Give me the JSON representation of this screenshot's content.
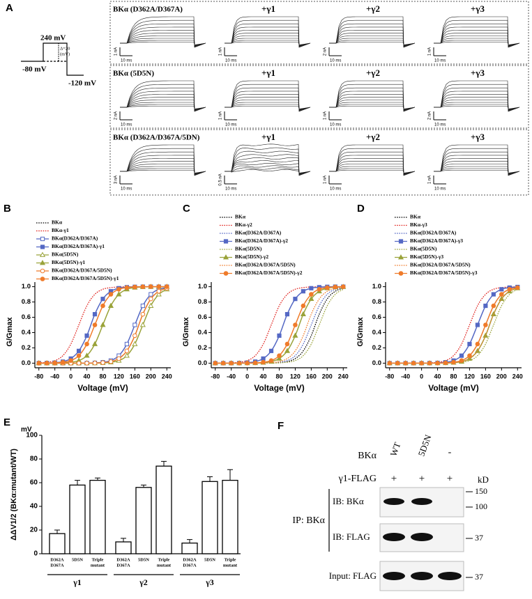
{
  "panel_a": {
    "label": "A",
    "protocol": {
      "top": "240 mV",
      "step": [
        "Δ=20",
        "(mV)"
      ],
      "hold": "-80 mV",
      "tail": "-120 mV"
    },
    "rows": [
      {
        "titles": [
          "BKα (D362A/D367A)",
          "+γ1",
          "+γ2",
          "+γ3"
        ],
        "current_scales": [
          "1 nA",
          "1 nA",
          "2 nA",
          "1 nA"
        ],
        "time_scales": [
          "10 ms",
          "10 ms",
          "10 ms",
          "10 ms"
        ]
      },
      {
        "titles": [
          "BKα (5D5N)",
          "+γ1",
          "+γ2",
          "+γ3"
        ],
        "current_scales": [
          "2 nA",
          "1 nA",
          "1 nA",
          "2 nA"
        ],
        "time_scales": [
          "10 ms",
          "10 ms",
          "10 ms",
          "10 ms"
        ]
      },
      {
        "titles": [
          "BKα (D362A/D367A/5DN)",
          "+γ1",
          "+γ2",
          "+γ3"
        ],
        "current_scales": [
          "3 nA",
          "0.5 nA",
          "1 nA",
          "1 nA"
        ],
        "time_scales": [
          "10 ms",
          "10 ms",
          "10 ms",
          "10 ms"
        ]
      }
    ]
  },
  "chart_data": [
    {
      "type": "line",
      "panel": "B",
      "xlabel": "Voltage (mV)",
      "ylabel": "G/Gmax",
      "x": [
        -80,
        -60,
        -40,
        -20,
        0,
        20,
        40,
        60,
        80,
        100,
        120,
        140,
        160,
        180,
        200,
        220,
        240
      ],
      "xlim": [
        -90,
        250
      ],
      "ylim": [
        -0.06,
        1.06
      ],
      "xticks": [
        -80,
        -40,
        0,
        40,
        80,
        120,
        160,
        200,
        240
      ],
      "yticks": [
        {
          "value": 0,
          "label": "0.0"
        },
        {
          "value": 0.2,
          "label": "0.2"
        },
        {
          "value": 0.4,
          "label": "0.4"
        },
        {
          "value": 0.6,
          "label": "0.6"
        },
        {
          "value": 0.8,
          "label": "0.8"
        },
        {
          "value": 1,
          "label": "1.0"
        }
      ],
      "series": [
        {
          "name": "BKα",
          "color": "#000000",
          "style": "dotted",
          "marker": null,
          "filled": false,
          "values": [
            0,
            0,
            0,
            0,
            0,
            0,
            0,
            0.002,
            0.007,
            0.02,
            0.06,
            0.16,
            0.36,
            0.64,
            0.84,
            0.94,
            0.98
          ]
        },
        {
          "name": "BKα-γ1",
          "color": "#e0201b",
          "style": "dotted",
          "marker": null,
          "filled": false,
          "values": [
            0.004,
            0.012,
            0.034,
            0.098,
            0.25,
            0.5,
            0.75,
            0.9,
            0.966,
            0.988,
            0.996,
            0.999,
            1,
            1,
            1,
            1,
            1
          ]
        },
        {
          "name": "BKα(D362A/D367A)",
          "color": "#5468c4",
          "style": "solid",
          "marker": "square",
          "filled": false,
          "values": [
            0,
            0,
            0,
            0,
            0,
            0,
            0.001,
            0.004,
            0.012,
            0.034,
            0.098,
            0.25,
            0.5,
            0.75,
            0.9,
            0.966,
            0.988
          ]
        },
        {
          "name": "BKα(D362A/D367A)-γ1",
          "color": "#5468c4",
          "style": "solid",
          "marker": "square",
          "filled": true,
          "values": [
            0,
            0.002,
            0.007,
            0.02,
            0.06,
            0.16,
            0.36,
            0.64,
            0.84,
            0.94,
            0.98,
            0.993,
            0.998,
            1,
            1,
            1,
            1
          ]
        },
        {
          "name": "BKα(5D5N)",
          "color": "#9aa33a",
          "style": "solid",
          "marker": "triangle",
          "filled": false,
          "values": [
            0,
            0,
            0,
            0,
            0,
            0,
            0,
            0.001,
            0.004,
            0.012,
            0.034,
            0.098,
            0.25,
            0.5,
            0.75,
            0.9,
            0.966
          ]
        },
        {
          "name": "BKα(5D5N)-γ1",
          "color": "#9aa33a",
          "style": "solid",
          "marker": "triangle",
          "filled": true,
          "values": [
            0,
            0,
            0.001,
            0.004,
            0.012,
            0.034,
            0.098,
            0.25,
            0.5,
            0.75,
            0.9,
            0.966,
            0.988,
            0.996,
            0.999,
            1,
            1
          ]
        },
        {
          "name": "BKα(D362A/D367A/5D5N)",
          "color": "#ef7b2a",
          "style": "solid",
          "marker": "circle",
          "filled": false,
          "values": [
            0,
            0,
            0,
            0,
            0,
            0,
            0,
            0.002,
            0.007,
            0.02,
            0.06,
            0.16,
            0.36,
            0.64,
            0.84,
            0.94,
            0.98
          ]
        },
        {
          "name": "BKα(D362A/D367A/5D5N)-γ1",
          "color": "#ef7b2a",
          "style": "solid",
          "marker": "circle",
          "filled": true,
          "values": [
            0,
            0.001,
            0.004,
            0.012,
            0.034,
            0.098,
            0.25,
            0.5,
            0.75,
            0.9,
            0.966,
            0.988,
            0.996,
            0.999,
            1,
            1,
            1
          ]
        }
      ]
    },
    {
      "type": "line",
      "panel": "C",
      "xlabel": "Voltage (mV)",
      "ylabel": "G/Gmax",
      "x": [
        -80,
        -60,
        -40,
        -20,
        0,
        20,
        40,
        60,
        80,
        100,
        120,
        140,
        160,
        180,
        200,
        220,
        240
      ],
      "xlim": [
        -90,
        250
      ],
      "ylim": [
        -0.06,
        1.06
      ],
      "xticks": [
        -80,
        -40,
        0,
        40,
        80,
        120,
        160,
        200,
        240
      ],
      "yticks": [
        {
          "value": 0,
          "label": "0.0"
        },
        {
          "value": 0.2,
          "label": "0.2"
        },
        {
          "value": 0.4,
          "label": "0.4"
        },
        {
          "value": 0.6,
          "label": "0.6"
        },
        {
          "value": 0.8,
          "label": "0.8"
        },
        {
          "value": 1,
          "label": "1.0"
        }
      ],
      "series": [
        {
          "name": "BKα",
          "color": "#000000",
          "style": "dotted",
          "marker": null,
          "filled": false,
          "values": [
            0,
            0,
            0,
            0,
            0,
            0,
            0,
            0.002,
            0.007,
            0.02,
            0.06,
            0.16,
            0.36,
            0.64,
            0.84,
            0.94,
            0.98
          ]
        },
        {
          "name": "BKα-γ2",
          "color": "#e0201b",
          "style": "dotted",
          "marker": null,
          "filled": false,
          "values": [
            0,
            0.001,
            0.004,
            0.012,
            0.034,
            0.098,
            0.25,
            0.5,
            0.75,
            0.9,
            0.966,
            0.988,
            0.996,
            0.999,
            1,
            1,
            1
          ]
        },
        {
          "name": "BKα(D362A/D367A)",
          "color": "#5468c4",
          "style": "dotted",
          "marker": null,
          "filled": false,
          "values": [
            0,
            0,
            0,
            0,
            0,
            0,
            0.001,
            0.004,
            0.012,
            0.034,
            0.098,
            0.25,
            0.5,
            0.75,
            0.9,
            0.966,
            0.988
          ]
        },
        {
          "name": "BKα(D362A/D367A)-γ2",
          "color": "#5468c4",
          "style": "solid",
          "marker": "square",
          "filled": true,
          "values": [
            0,
            0,
            0,
            0.002,
            0.007,
            0.02,
            0.06,
            0.16,
            0.36,
            0.64,
            0.84,
            0.94,
            0.98,
            0.993,
            0.998,
            1,
            1
          ]
        },
        {
          "name": "BKα(5D5N)",
          "color": "#9aa33a",
          "style": "dotted",
          "marker": null,
          "filled": false,
          "values": [
            0,
            0,
            0,
            0,
            0,
            0,
            0,
            0.001,
            0.004,
            0.012,
            0.034,
            0.098,
            0.25,
            0.5,
            0.75,
            0.9,
            0.966
          ]
        },
        {
          "name": "BKα(5D5N)-γ2",
          "color": "#9aa33a",
          "style": "solid",
          "marker": "triangle",
          "filled": true,
          "values": [
            0,
            0,
            0,
            0,
            0,
            0.002,
            0.007,
            0.02,
            0.06,
            0.16,
            0.36,
            0.64,
            0.84,
            0.94,
            0.98,
            0.993,
            0.998
          ]
        },
        {
          "name": "BKα(D362A/D367A/5D5N)",
          "color": "#ef7b2a",
          "style": "dotted",
          "marker": null,
          "filled": false,
          "values": [
            0,
            0,
            0,
            0,
            0,
            0,
            0.002,
            0.007,
            0.02,
            0.06,
            0.16,
            0.36,
            0.64,
            0.84,
            0.94,
            0.98,
            0.993
          ]
        },
        {
          "name": "BKα(D362A/D367A/5D5N)-γ2",
          "color": "#ef7b2a",
          "style": "solid",
          "marker": "circle",
          "filled": true,
          "values": [
            0,
            0,
            0,
            0,
            0.001,
            0.004,
            0.012,
            0.034,
            0.098,
            0.25,
            0.5,
            0.75,
            0.9,
            0.966,
            0.988,
            0.996,
            0.999
          ]
        }
      ]
    },
    {
      "type": "line",
      "panel": "D",
      "xlabel": "Voltage (mV)",
      "ylabel": "G/Gmax",
      "x": [
        -80,
        -60,
        -40,
        -20,
        0,
        20,
        40,
        60,
        80,
        100,
        120,
        140,
        160,
        180,
        200,
        220,
        240
      ],
      "xlim": [
        -90,
        250
      ],
      "ylim": [
        -0.06,
        1.06
      ],
      "xticks": [
        -80,
        -40,
        0,
        40,
        80,
        120,
        160,
        200,
        240
      ],
      "yticks": [
        {
          "value": 0,
          "label": "0.0"
        },
        {
          "value": 0.2,
          "label": "0.2"
        },
        {
          "value": 0.4,
          "label": "0.4"
        },
        {
          "value": 0.6,
          "label": "0.6"
        },
        {
          "value": 0.8,
          "label": "0.8"
        },
        {
          "value": 1,
          "label": "1.0"
        }
      ],
      "series": [
        {
          "name": "BKα",
          "color": "#000000",
          "style": "dotted",
          "marker": null,
          "filled": false,
          "values": [
            0,
            0,
            0,
            0,
            0,
            0,
            0,
            0.002,
            0.007,
            0.02,
            0.06,
            0.16,
            0.36,
            0.64,
            0.84,
            0.94,
            0.98
          ]
        },
        {
          "name": "BKα-γ3",
          "color": "#e0201b",
          "style": "dotted",
          "marker": null,
          "filled": false,
          "values": [
            0,
            0,
            0,
            0,
            0.001,
            0.004,
            0.012,
            0.034,
            0.098,
            0.25,
            0.5,
            0.75,
            0.9,
            0.966,
            0.988,
            0.996,
            0.999
          ]
        },
        {
          "name": "BKα(D362A/D367A)",
          "color": "#5468c4",
          "style": "dotted",
          "marker": null,
          "filled": false,
          "values": [
            0,
            0,
            0,
            0,
            0,
            0,
            0.001,
            0.004,
            0.012,
            0.034,
            0.098,
            0.25,
            0.5,
            0.75,
            0.9,
            0.966,
            0.988
          ]
        },
        {
          "name": "BKα(D362A/D367A)-γ3",
          "color": "#5468c4",
          "style": "solid",
          "marker": "square",
          "filled": true,
          "values": [
            0,
            0,
            0,
            0,
            0,
            0.001,
            0.004,
            0.012,
            0.034,
            0.098,
            0.25,
            0.5,
            0.75,
            0.9,
            0.966,
            0.988,
            0.996
          ]
        },
        {
          "name": "BKα(5D5N)",
          "color": "#9aa33a",
          "style": "dotted",
          "marker": null,
          "filled": false,
          "values": [
            0,
            0,
            0,
            0,
            0,
            0,
            0,
            0.001,
            0.004,
            0.012,
            0.034,
            0.098,
            0.25,
            0.5,
            0.75,
            0.9,
            0.966
          ]
        },
        {
          "name": "BKα(5D5N)-γ3",
          "color": "#9aa33a",
          "style": "solid",
          "marker": "triangle",
          "filled": true,
          "values": [
            0,
            0,
            0,
            0,
            0,
            0,
            0,
            0.002,
            0.007,
            0.02,
            0.06,
            0.16,
            0.36,
            0.64,
            0.84,
            0.94,
            0.98
          ]
        },
        {
          "name": "BKα(D362A/D367A/5D5N)",
          "color": "#ef7b2a",
          "style": "dotted",
          "marker": null,
          "filled": false,
          "values": [
            0,
            0,
            0,
            0,
            0,
            0,
            0,
            0.002,
            0.007,
            0.02,
            0.06,
            0.16,
            0.36,
            0.64,
            0.84,
            0.94,
            0.98
          ]
        },
        {
          "name": "BKα(D362A/D367A/5D5N)-γ3",
          "color": "#ef7b2a",
          "style": "solid",
          "marker": "circle",
          "filled": true,
          "values": [
            0,
            0,
            0,
            0,
            0,
            0,
            0.001,
            0.004,
            0.012,
            0.034,
            0.098,
            0.25,
            0.5,
            0.75,
            0.9,
            0.966,
            0.988
          ]
        }
      ]
    },
    {
      "type": "bar",
      "panel": "E",
      "unit": "mV",
      "ylabel": "ΔΔV1/2 (BKα:mutant/WT)",
      "ylim": [
        0,
        100
      ],
      "yticks": [
        0,
        20,
        40,
        60,
        80,
        100
      ],
      "categories": [
        [
          "D362A",
          "D367A"
        ],
        [
          "5D5N"
        ],
        [
          "Triple",
          "mutant"
        ],
        [
          "D362A",
          "D367A"
        ],
        [
          "5D5N"
        ],
        [
          "Triple",
          "mutant"
        ],
        [
          "D362A",
          "D367A"
        ],
        [
          "5D5N"
        ],
        [
          "Triple",
          "mutant"
        ]
      ],
      "groups": [
        "γ1",
        "γ2",
        "γ3"
      ],
      "values": [
        17,
        58,
        62,
        10,
        56,
        74,
        9,
        61,
        62
      ],
      "errors": [
        3,
        4,
        2,
        3,
        2,
        4,
        3,
        4,
        9
      ],
      "color": "#ffffff"
    }
  ],
  "panel_f": {
    "label": "F",
    "row_label": "BKα",
    "lanes": [
      "WT",
      "5D5N",
      "-"
    ],
    "tag_label": "γ1-FLAG",
    "tag_marks": [
      "+",
      "+",
      "+"
    ],
    "unit": "kD",
    "ip_label": "IP: BKα",
    "blots": [
      {
        "label": "IB: BKα",
        "markers": [
          "150",
          "100"
        ]
      },
      {
        "label": "IB: FLAG",
        "markers": [
          "37"
        ]
      },
      {
        "label": "Input: FLAG",
        "markers": [
          "37"
        ]
      }
    ]
  }
}
